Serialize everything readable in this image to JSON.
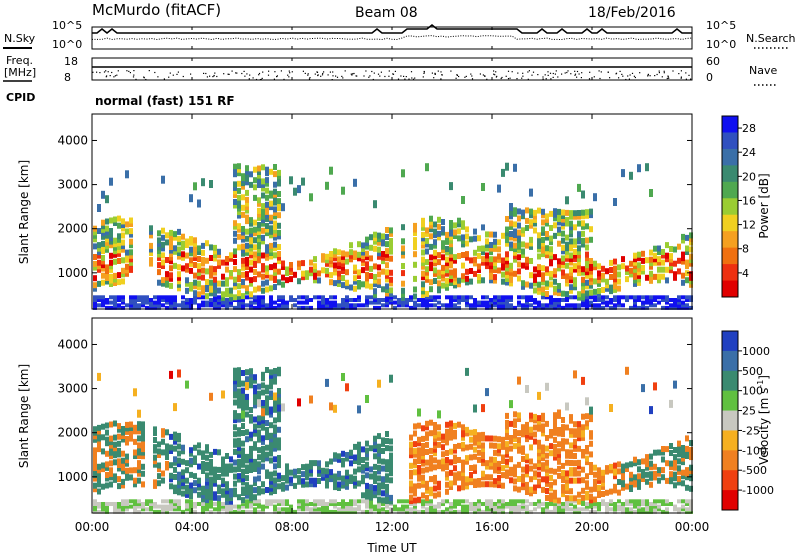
{
  "header": {
    "site": "McMurdo (fitACF)",
    "beam": "Beam 08",
    "date": "18/Feb/2016"
  },
  "status_panels": {
    "nsky_label": "N.Sky",
    "nsearch_label": "N.Search",
    "noise_ticks_left": [
      "10^5",
      "10^0"
    ],
    "noise_ticks_right": [
      "10^5",
      "10^0"
    ],
    "freq_label": "Freq.",
    "freq_unit": "[MHz]",
    "freq_ticks": [
      "18",
      "8"
    ],
    "nave_label": "Nave",
    "nave_ticks": [
      "60",
      "0"
    ],
    "cpid_label": "CPID",
    "cpid_value": "normal (fast) 151 RF"
  },
  "chart_data": [
    {
      "type": "heatmap",
      "name": "power-panel",
      "ylabel": "Slant Range [km]",
      "xlabel": "",
      "yticks": [
        1000,
        2000,
        3000,
        4000
      ],
      "ylim": [
        180,
        4600
      ],
      "xticks": [
        "00:00",
        "04:00",
        "08:00",
        "12:00",
        "16:00",
        "20:00",
        "00:00"
      ],
      "xlim_hours": [
        0,
        24
      ],
      "colorbar": {
        "label": "Power [dB]",
        "ticks": [
          "4",
          "8",
          "12",
          "16",
          "20",
          "24",
          "28"
        ],
        "range": [
          0,
          30
        ],
        "colors": [
          "#1010f0",
          "#3050c0",
          "#3a6fa8",
          "#3a8a70",
          "#4fa850",
          "#9acd32",
          "#f0d020",
          "#f5a020",
          "#f07010",
          "#ee3010",
          "#e00000"
        ]
      }
    },
    {
      "type": "heatmap",
      "name": "velocity-panel",
      "ylabel": "Slant Range [km]",
      "xlabel": "Time UT",
      "yticks": [
        1000,
        2000,
        3000,
        4000
      ],
      "ylim": [
        180,
        4600
      ],
      "xticks": [
        "00:00",
        "04:00",
        "08:00",
        "12:00",
        "16:00",
        "20:00",
        "00:00"
      ],
      "xlim_hours": [
        0,
        24
      ],
      "colorbar": {
        "label": "Velocity [m s",
        "label_sup": "-1",
        "label_end": "]",
        "ticks": [
          "1000",
          "500",
          "100",
          "25",
          "-25",
          "-100",
          "-500",
          "-1000"
        ],
        "colors": [
          "#2040c0",
          "#3a6fa8",
          "#3a8a70",
          "#60c040",
          "#c8c8c0",
          "#f5b020",
          "#f08020",
          "#f04010",
          "#e00000"
        ]
      }
    }
  ]
}
